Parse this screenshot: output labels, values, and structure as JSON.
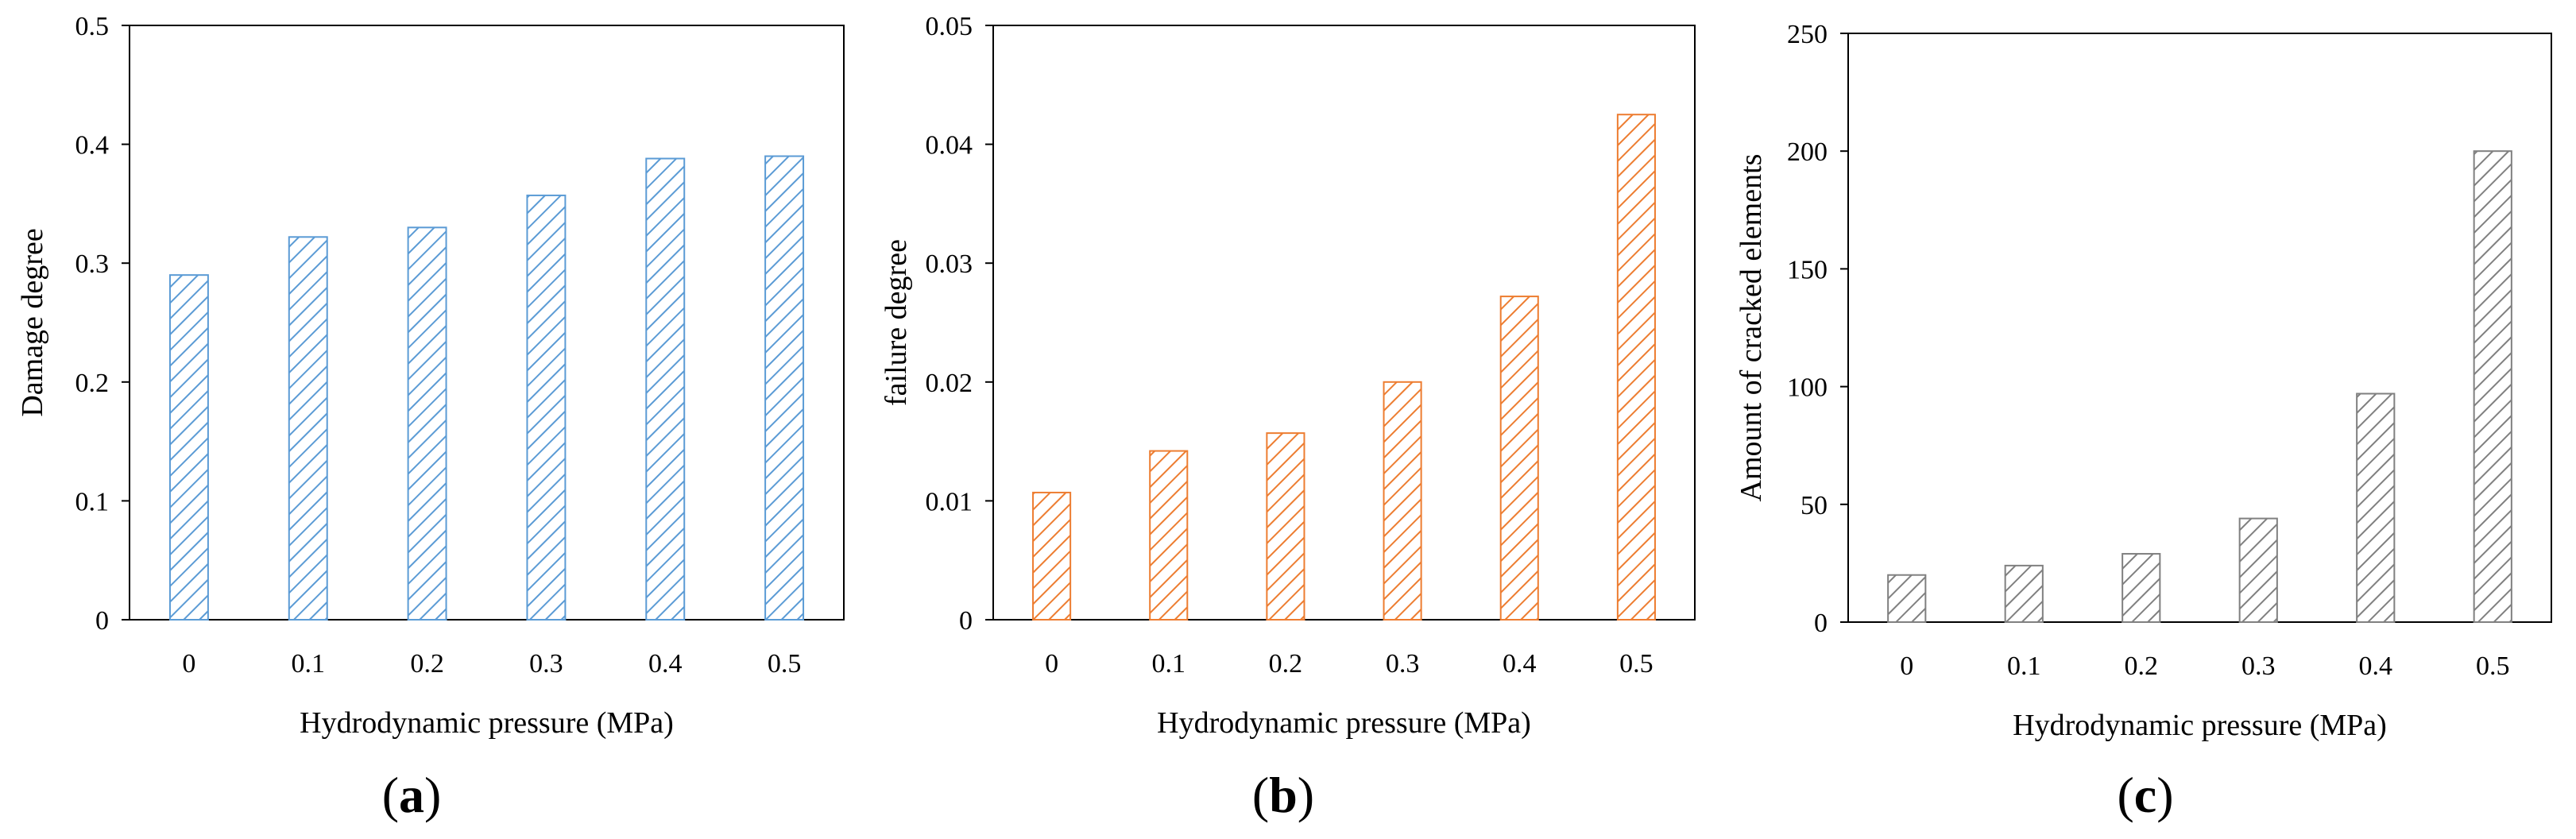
{
  "chart_data": [
    {
      "type": "bar",
      "panel_label": "a",
      "categories": [
        "0",
        "0.1",
        "0.2",
        "0.3",
        "0.4",
        "0.5"
      ],
      "values": [
        0.29,
        0.322,
        0.33,
        0.357,
        0.388,
        0.39
      ],
      "xlabel": "Hydrodynamic pressure (MPa)",
      "ylabel": "Damage degree",
      "ylim": [
        0,
        0.5
      ],
      "yticks": [
        "0",
        "0.1",
        "0.2",
        "0.3",
        "0.4",
        "0.5"
      ],
      "bar_color": "#5b9bd5",
      "fill": "diagonal-hatch",
      "grid": false,
      "legend": "none"
    },
    {
      "type": "bar",
      "panel_label": "b",
      "categories": [
        "0",
        "0.1",
        "0.2",
        "0.3",
        "0.4",
        "0.5"
      ],
      "values": [
        0.0107,
        0.0142,
        0.0157,
        0.02,
        0.0272,
        0.0425
      ],
      "xlabel": "Hydrodynamic pressure (MPa)",
      "ylabel": "failure degree",
      "ylim": [
        0,
        0.05
      ],
      "yticks": [
        "0",
        "0.01",
        "0.02",
        "0.03",
        "0.04",
        "0.05"
      ],
      "bar_color": "#ed7d31",
      "fill": "diagonal-hatch",
      "grid": false,
      "legend": "none"
    },
    {
      "type": "bar",
      "panel_label": "c",
      "categories": [
        "0",
        "0.1",
        "0.2",
        "0.3",
        "0.4",
        "0.5"
      ],
      "values": [
        20,
        24,
        29,
        44,
        97,
        200
      ],
      "xlabel": "Hydrodynamic pressure (MPa)",
      "ylabel": "Amount of cracked elements",
      "ylim": [
        0,
        250
      ],
      "yticks": [
        "0",
        "50",
        "100",
        "150",
        "200",
        "250"
      ],
      "bar_color": "#808080",
      "fill": "diagonal-hatch",
      "grid": false,
      "legend": "none"
    }
  ],
  "labels": {
    "open_paren": "(",
    "close_paren": ")"
  }
}
